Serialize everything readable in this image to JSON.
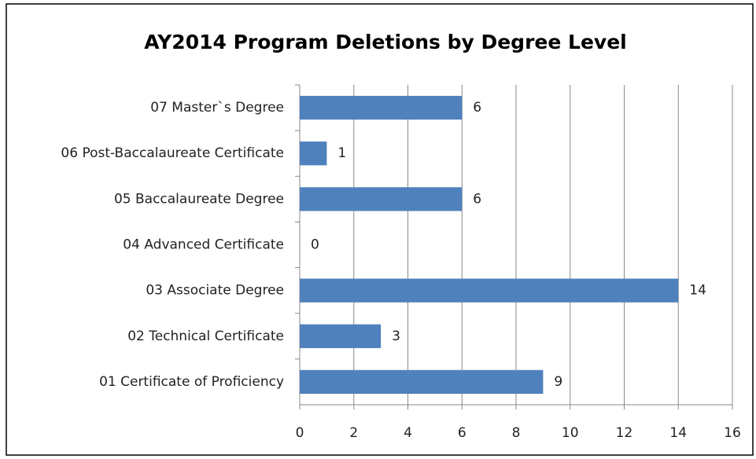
{
  "chart_data": {
    "type": "bar",
    "title": "AY2014 Program Deletions by Degree Level",
    "categories": [
      "07 Master`s Degree",
      "06 Post-Baccalaureate Certificate",
      "05 Baccalaureate Degree",
      "04 Advanced Certificate",
      "03 Associate Degree",
      "02 Technical Certificate",
      "01 Certificate of Proficiency"
    ],
    "values": [
      6,
      1,
      6,
      0,
      14,
      3,
      9
    ],
    "color": "#4f81bd",
    "xlim": [
      0,
      16
    ],
    "xticks": [
      0,
      2,
      4,
      6,
      8,
      10,
      12,
      14,
      16
    ],
    "grid": true
  }
}
